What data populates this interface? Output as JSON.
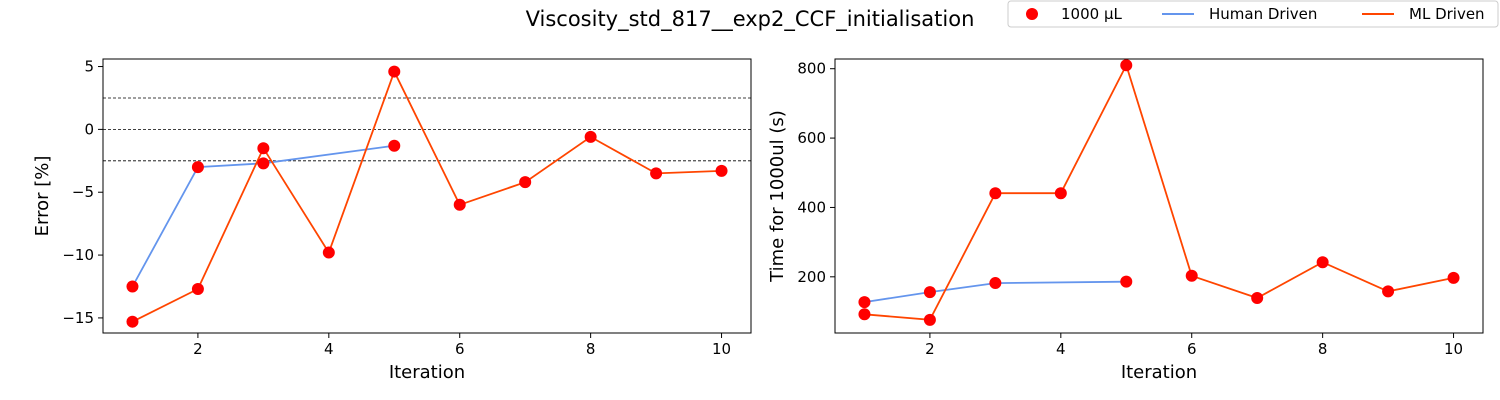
{
  "title": "Viscosity_std_817__exp2_CCF_initialisation",
  "legend": {
    "placement": "top-right",
    "entries": [
      {
        "label": "1000 µL",
        "kind": "marker",
        "color": "#ff0000"
      },
      {
        "label": "Human Driven",
        "kind": "line",
        "color": "#6495ed"
      },
      {
        "label": "ML Driven",
        "kind": "line",
        "color": "#ff4500"
      }
    ]
  },
  "chart_data": [
    {
      "type": "line",
      "xlabel": "Iteration",
      "ylabel": "Error [%]",
      "xlim": [
        0.55,
        10.45
      ],
      "ylim": [
        -16.2,
        5.6
      ],
      "xticks": [
        2,
        4,
        6,
        8,
        10
      ],
      "yticks": [
        -15,
        -10,
        -5,
        0,
        5
      ],
      "grid": false,
      "reference_lines": [
        2.5,
        0,
        -2.5
      ],
      "series": [
        {
          "name": "Human Driven",
          "color": "#6495ed",
          "x": [
            1,
            2,
            3,
            5
          ],
          "y": [
            -12.5,
            -3.0,
            -2.7,
            -1.3
          ]
        },
        {
          "name": "ML Driven",
          "color": "#ff4500",
          "x": [
            1,
            2,
            3,
            4,
            5,
            6,
            7,
            8,
            9,
            10
          ],
          "y": [
            -15.3,
            -12.7,
            -1.5,
            -9.8,
            4.6,
            -6.0,
            -4.2,
            -0.6,
            -3.5,
            -3.3
          ]
        }
      ],
      "markers": {
        "name": "1000 µL",
        "color": "#ff0000",
        "x": [
          1,
          2,
          3,
          5,
          1,
          2,
          3,
          4,
          5,
          6,
          7,
          8,
          9,
          10
        ],
        "y": [
          -12.5,
          -3.0,
          -2.7,
          -1.3,
          -15.3,
          -12.7,
          -1.5,
          -9.8,
          4.6,
          -6.0,
          -4.2,
          -0.6,
          -3.5,
          -3.3
        ]
      }
    },
    {
      "type": "line",
      "xlabel": "Iteration",
      "ylabel": "Time for 1000ul (s)",
      "xlim": [
        0.55,
        10.45
      ],
      "ylim": [
        38,
        828
      ],
      "xticks": [
        2,
        4,
        6,
        8,
        10
      ],
      "yticks": [
        200,
        400,
        600,
        800
      ],
      "grid": false,
      "reference_lines": [],
      "series": [
        {
          "name": "Human Driven",
          "color": "#6495ed",
          "x": [
            1,
            2,
            3,
            5
          ],
          "y": [
            127,
            156,
            182,
            186
          ]
        },
        {
          "name": "ML Driven",
          "color": "#ff4500",
          "x": [
            1,
            2,
            3,
            4,
            5,
            6,
            7,
            8,
            9,
            10
          ],
          "y": [
            92,
            76,
            441,
            441,
            810,
            203,
            139,
            242,
            158,
            197
          ]
        }
      ],
      "markers": {
        "name": "1000 µL",
        "color": "#ff0000",
        "x": [
          1,
          2,
          3,
          5,
          1,
          2,
          3,
          4,
          5,
          6,
          7,
          8,
          9,
          10
        ],
        "y": [
          127,
          156,
          182,
          186,
          92,
          76,
          441,
          441,
          810,
          203,
          139,
          242,
          158,
          197
        ]
      }
    }
  ]
}
